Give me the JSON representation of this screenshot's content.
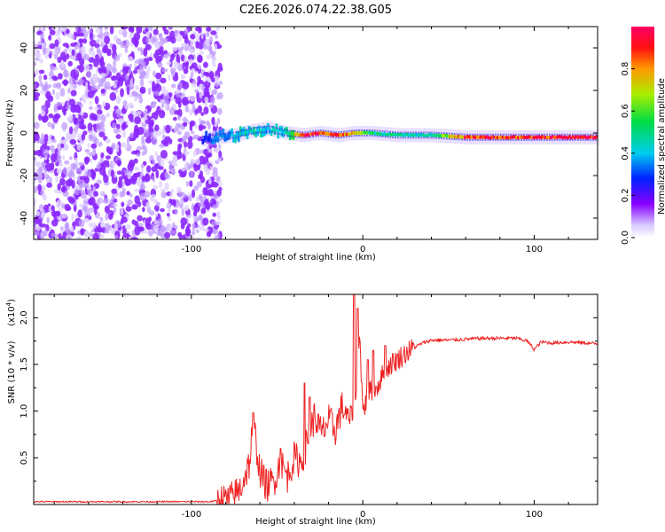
{
  "title": "C2E6.2026.074.22.38.G05",
  "chart_data": [
    {
      "type": "heatmap",
      "xlabel": "Height of straight line (km)",
      "ylabel": "Frequency (Hz)",
      "xlim": [
        -192,
        137
      ],
      "ylim": [
        -50,
        50
      ],
      "xticks": [
        -100,
        0,
        100
      ],
      "yticks": [
        -40,
        -20,
        0,
        20,
        40
      ],
      "colorbar": {
        "label": "Normalized spectral amplitude",
        "range": [
          0,
          1
        ],
        "ticks": [
          0.0,
          0.2,
          0.4,
          0.6,
          0.8
        ],
        "tick_labels": [
          "0.0",
          "0.2",
          "0.4",
          "0.6",
          "0.8"
        ]
      },
      "noise_region_x": [
        -192,
        -85
      ],
      "signal_track": {
        "x": [
          -94,
          -85,
          -75,
          -65,
          -55,
          -45,
          -35,
          -25,
          -15,
          -5,
          5,
          20,
          40,
          60,
          80,
          95,
          110,
          137
        ],
        "freq": [
          -3,
          -2,
          -1,
          1,
          2,
          0,
          -1,
          0,
          -1,
          0,
          0,
          -1,
          -1,
          -2,
          -2,
          -2,
          -2,
          -2
        ],
        "amplitude": [
          0.25,
          0.35,
          0.4,
          0.45,
          0.4,
          0.45,
          0.95,
          0.9,
          0.9,
          0.7,
          0.5,
          0.45,
          0.45,
          0.9,
          0.9,
          0.85,
          0.95,
          0.95
        ]
      }
    },
    {
      "type": "line",
      "xlabel": "Height of straight line (km)",
      "ylabel": "SNR (10 * v/v)",
      "yscale_label": "(x10",
      "yscale_exp": "4",
      "xlim": [
        -192,
        137
      ],
      "ylim": [
        0,
        2.25
      ],
      "xticks": [
        -100,
        0,
        100
      ],
      "yticks": [
        0.5,
        1.0,
        1.5,
        2.0
      ],
      "ytick_labels": [
        "0.5",
        "1.0",
        "1.5",
        "2.0"
      ],
      "series": [
        {
          "name": "SNR",
          "color": "#ee2222",
          "x": [
            -192,
            -90,
            -78,
            -72,
            -66,
            -64,
            -60,
            -56,
            -52,
            -48,
            -44,
            -40,
            -36,
            -32,
            -28,
            -24,
            -20,
            -16,
            -12,
            -8,
            -4,
            -2,
            0,
            4,
            8,
            12,
            16,
            20,
            25,
            30,
            35,
            40,
            50,
            60,
            70,
            80,
            90,
            96,
            100,
            104,
            110,
            120,
            130,
            137
          ],
          "values": [
            0.03,
            0.03,
            0.05,
            0.15,
            0.45,
            0.9,
            0.35,
            0.2,
            0.25,
            0.45,
            0.3,
            0.5,
            0.45,
            0.7,
            0.95,
            0.75,
            0.9,
            0.8,
            1.05,
            0.9,
            1.1,
            1.9,
            1.0,
            1.2,
            1.25,
            1.4,
            1.5,
            1.55,
            1.62,
            1.68,
            1.73,
            1.76,
            1.76,
            1.77,
            1.78,
            1.78,
            1.78,
            1.75,
            1.66,
            1.74,
            1.73,
            1.74,
            1.73,
            1.72
          ],
          "spikes": [
            {
              "x": -64,
              "v": 0.98
            },
            {
              "x": -48,
              "v": 0.6
            },
            {
              "x": -34,
              "v": 1.3
            },
            {
              "x": -31,
              "v": 1.15
            },
            {
              "x": -5,
              "v": 2.25
            },
            {
              "x": -3,
              "v": 2.1
            },
            {
              "x": 3,
              "v": 1.55
            },
            {
              "x": 6,
              "v": 1.65
            },
            {
              "x": 13,
              "v": 1.7
            }
          ]
        }
      ]
    }
  ]
}
